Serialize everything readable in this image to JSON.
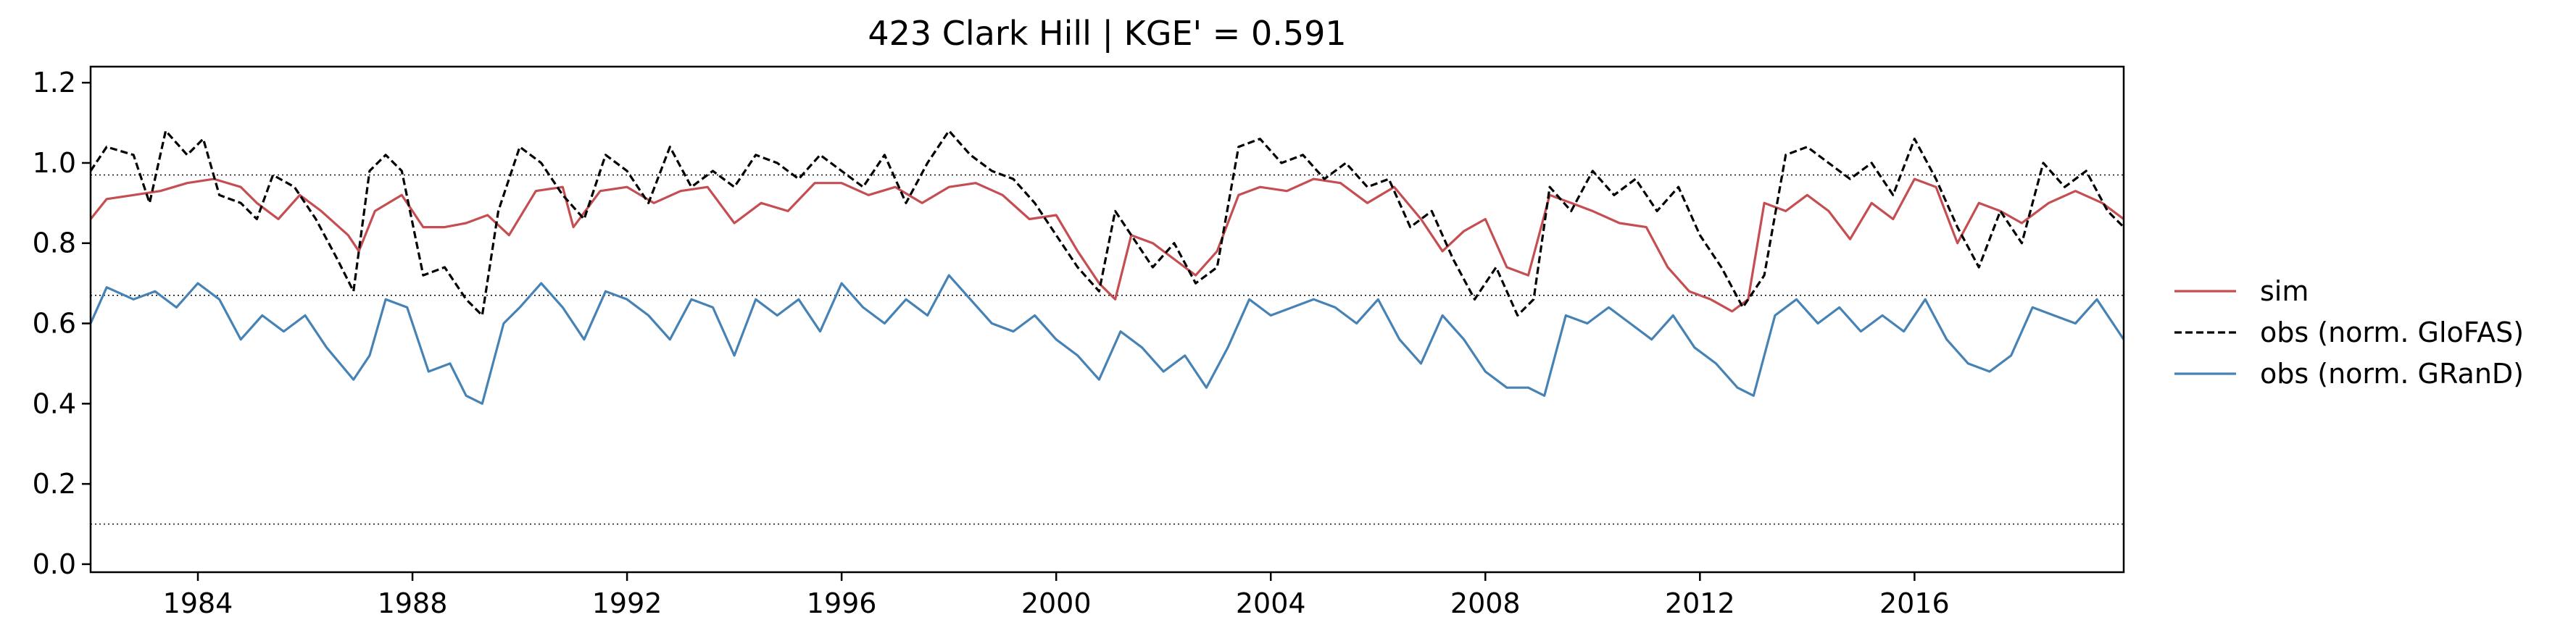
{
  "chart_data": {
    "type": "line",
    "title": "423  Clark Hill | KGE' = 0.591",
    "xlabel": "",
    "ylabel": "",
    "xlim": [
      1982.0,
      2019.9
    ],
    "ylim": [
      -0.02,
      1.24
    ],
    "xticks": [
      1984,
      1988,
      1992,
      1996,
      2000,
      2004,
      2008,
      2012,
      2016
    ],
    "yticks": [
      0.0,
      0.2,
      0.4,
      0.6,
      0.8,
      1.0,
      1.2
    ],
    "xtick_labels": [
      "1984",
      "1988",
      "1992",
      "1996",
      "2000",
      "2004",
      "2008",
      "2012",
      "2016"
    ],
    "ytick_labels": [
      "0.0",
      "0.2",
      "0.4",
      "0.6",
      "0.8",
      "1.0",
      "1.2"
    ],
    "reference_lines": [
      0.97,
      0.67,
      0.1
    ],
    "grid": false,
    "legend_position": "right, outside plot",
    "series": [
      {
        "name": "sim",
        "color": "#c44e52",
        "style": "solid",
        "x": [
          1982.0,
          1982.3,
          1982.8,
          1983.3,
          1983.8,
          1984.3,
          1984.8,
          1985.1,
          1985.5,
          1985.9,
          1986.3,
          1986.8,
          1987.0,
          1987.3,
          1987.8,
          1988.2,
          1988.6,
          1989.0,
          1989.4,
          1989.8,
          1990.3,
          1990.8,
          1991.0,
          1991.5,
          1992.0,
          1992.5,
          1993.0,
          1993.5,
          1994.0,
          1994.5,
          1995.0,
          1995.5,
          1996.0,
          1996.5,
          1997.0,
          1997.5,
          1998.0,
          1998.5,
          1999.0,
          1999.5,
          2000.0,
          2000.4,
          2000.8,
          2001.1,
          2001.4,
          2001.8,
          2002.2,
          2002.6,
          2003.0,
          2003.4,
          2003.8,
          2004.3,
          2004.8,
          2005.3,
          2005.8,
          2006.3,
          2006.8,
          2007.2,
          2007.6,
          2008.0,
          2008.4,
          2008.8,
          2009.2,
          2009.6,
          2010.0,
          2010.5,
          2011.0,
          2011.4,
          2011.8,
          2012.2,
          2012.6,
          2012.9,
          2013.2,
          2013.6,
          2014.0,
          2014.4,
          2014.8,
          2015.2,
          2015.6,
          2016.0,
          2016.4,
          2016.8,
          2017.2,
          2017.6,
          2018.0,
          2018.5,
          2019.0,
          2019.5,
          2019.9
        ],
        "values": [
          0.86,
          0.91,
          0.92,
          0.93,
          0.95,
          0.96,
          0.94,
          0.9,
          0.86,
          0.92,
          0.88,
          0.82,
          0.78,
          0.88,
          0.92,
          0.84,
          0.84,
          0.85,
          0.87,
          0.82,
          0.93,
          0.94,
          0.84,
          0.93,
          0.94,
          0.9,
          0.93,
          0.94,
          0.85,
          0.9,
          0.88,
          0.95,
          0.95,
          0.92,
          0.94,
          0.9,
          0.94,
          0.95,
          0.92,
          0.86,
          0.87,
          0.78,
          0.7,
          0.66,
          0.82,
          0.8,
          0.76,
          0.72,
          0.78,
          0.92,
          0.94,
          0.93,
          0.96,
          0.95,
          0.9,
          0.94,
          0.86,
          0.78,
          0.83,
          0.86,
          0.74,
          0.72,
          0.92,
          0.9,
          0.88,
          0.85,
          0.84,
          0.74,
          0.68,
          0.66,
          0.63,
          0.66,
          0.9,
          0.88,
          0.92,
          0.88,
          0.81,
          0.9,
          0.86,
          0.96,
          0.94,
          0.8,
          0.9,
          0.88,
          0.85,
          0.9,
          0.93,
          0.9,
          0.86
        ]
      },
      {
        "name": "obs (norm. GloFAS)",
        "color": "#000000",
        "style": "dashed",
        "x": [
          1982.0,
          1982.3,
          1982.8,
          1983.1,
          1983.4,
          1983.8,
          1984.1,
          1984.4,
          1984.8,
          1985.1,
          1985.4,
          1985.8,
          1986.2,
          1986.6,
          1986.9,
          1987.2,
          1987.5,
          1987.8,
          1988.2,
          1988.6,
          1989.0,
          1989.3,
          1989.6,
          1990.0,
          1990.4,
          1990.8,
          1991.2,
          1991.6,
          1992.0,
          1992.4,
          1992.8,
          1993.2,
          1993.6,
          1994.0,
          1994.4,
          1994.8,
          1995.2,
          1995.6,
          1996.0,
          1996.4,
          1996.8,
          1997.2,
          1997.6,
          1998.0,
          1998.4,
          1998.8,
          1999.2,
          1999.6,
          2000.0,
          2000.4,
          2000.8,
          2001.1,
          2001.4,
          2001.8,
          2002.2,
          2002.6,
          2003.0,
          2003.4,
          2003.8,
          2004.2,
          2004.6,
          2005.0,
          2005.4,
          2005.8,
          2006.2,
          2006.6,
          2007.0,
          2007.4,
          2007.8,
          2008.2,
          2008.6,
          2008.9,
          2009.2,
          2009.6,
          2010.0,
          2010.4,
          2010.8,
          2011.2,
          2011.6,
          2012.0,
          2012.4,
          2012.8,
          2013.2,
          2013.6,
          2014.0,
          2014.4,
          2014.8,
          2015.2,
          2015.6,
          2016.0,
          2016.4,
          2016.8,
          2017.2,
          2017.6,
          2018.0,
          2018.4,
          2018.8,
          2019.2,
          2019.6,
          2019.9
        ],
        "values": [
          0.98,
          1.04,
          1.02,
          0.9,
          1.08,
          1.02,
          1.06,
          0.92,
          0.9,
          0.86,
          0.97,
          0.94,
          0.86,
          0.76,
          0.68,
          0.98,
          1.02,
          0.98,
          0.72,
          0.74,
          0.66,
          0.62,
          0.88,
          1.04,
          1.0,
          0.92,
          0.86,
          1.02,
          0.98,
          0.9,
          1.04,
          0.94,
          0.98,
          0.94,
          1.02,
          1.0,
          0.96,
          1.02,
          0.98,
          0.94,
          1.02,
          0.9,
          1.0,
          1.08,
          1.02,
          0.98,
          0.96,
          0.9,
          0.82,
          0.74,
          0.68,
          0.88,
          0.82,
          0.74,
          0.8,
          0.7,
          0.74,
          1.04,
          1.06,
          1.0,
          1.02,
          0.96,
          1.0,
          0.94,
          0.96,
          0.84,
          0.88,
          0.76,
          0.66,
          0.74,
          0.62,
          0.66,
          0.94,
          0.88,
          0.98,
          0.92,
          0.96,
          0.88,
          0.94,
          0.82,
          0.74,
          0.64,
          0.72,
          1.02,
          1.04,
          1.0,
          0.96,
          1.0,
          0.92,
          1.06,
          0.96,
          0.84,
          0.74,
          0.88,
          0.8,
          1.0,
          0.94,
          0.98,
          0.88,
          0.84
        ]
      },
      {
        "name": "obs (norm. GRanD)",
        "color": "#4682b4",
        "style": "solid",
        "x": [
          1982.0,
          1982.3,
          1982.8,
          1983.2,
          1983.6,
          1984.0,
          1984.4,
          1984.8,
          1985.2,
          1985.6,
          1986.0,
          1986.4,
          1986.9,
          1987.2,
          1987.5,
          1987.9,
          1988.3,
          1988.7,
          1989.0,
          1989.3,
          1989.7,
          1990.0,
          1990.4,
          1990.8,
          1991.2,
          1991.6,
          1992.0,
          1992.4,
          1992.8,
          1993.2,
          1993.6,
          1994.0,
          1994.4,
          1994.8,
          1995.2,
          1995.6,
          1996.0,
          1996.4,
          1996.8,
          1997.2,
          1997.6,
          1998.0,
          1998.4,
          1998.8,
          1999.2,
          1999.6,
          2000.0,
          2000.4,
          2000.8,
          2001.2,
          2001.6,
          2002.0,
          2002.4,
          2002.8,
          2003.2,
          2003.6,
          2004.0,
          2004.4,
          2004.8,
          2005.2,
          2005.6,
          2006.0,
          2006.4,
          2006.8,
          2007.2,
          2007.6,
          2008.0,
          2008.4,
          2008.8,
          2009.1,
          2009.5,
          2009.9,
          2010.3,
          2010.7,
          2011.1,
          2011.5,
          2011.9,
          2012.3,
          2012.7,
          2013.0,
          2013.4,
          2013.8,
          2014.2,
          2014.6,
          2015.0,
          2015.4,
          2015.8,
          2016.2,
          2016.6,
          2017.0,
          2017.4,
          2017.8,
          2018.2,
          2018.6,
          2019.0,
          2019.4,
          2019.9
        ],
        "values": [
          0.6,
          0.69,
          0.66,
          0.68,
          0.64,
          0.7,
          0.66,
          0.56,
          0.62,
          0.58,
          0.62,
          0.54,
          0.46,
          0.52,
          0.66,
          0.64,
          0.48,
          0.5,
          0.42,
          0.4,
          0.6,
          0.64,
          0.7,
          0.64,
          0.56,
          0.68,
          0.66,
          0.62,
          0.56,
          0.66,
          0.64,
          0.52,
          0.66,
          0.62,
          0.66,
          0.58,
          0.7,
          0.64,
          0.6,
          0.66,
          0.62,
          0.72,
          0.66,
          0.6,
          0.58,
          0.62,
          0.56,
          0.52,
          0.46,
          0.58,
          0.54,
          0.48,
          0.52,
          0.44,
          0.54,
          0.66,
          0.62,
          0.64,
          0.66,
          0.64,
          0.6,
          0.66,
          0.56,
          0.5,
          0.62,
          0.56,
          0.48,
          0.44,
          0.44,
          0.42,
          0.62,
          0.6,
          0.64,
          0.6,
          0.56,
          0.62,
          0.54,
          0.5,
          0.44,
          0.42,
          0.62,
          0.66,
          0.6,
          0.64,
          0.58,
          0.62,
          0.58,
          0.66,
          0.56,
          0.5,
          0.48,
          0.52,
          0.64,
          0.62,
          0.6,
          0.66,
          0.56
        ]
      }
    ]
  }
}
